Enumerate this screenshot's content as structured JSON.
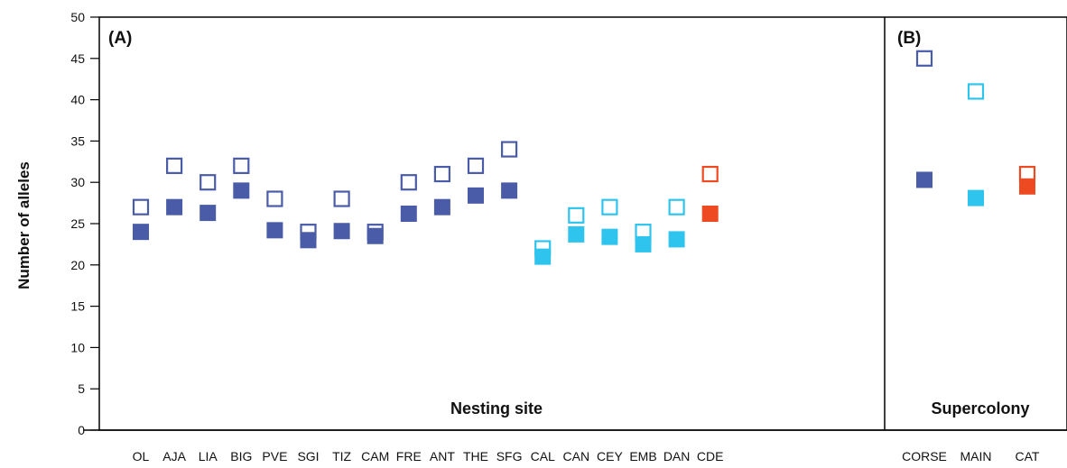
{
  "chart_data": {
    "type": "scatter",
    "ylabel": "Number of alleles",
    "xlabel": "",
    "ylim": [
      0,
      50
    ],
    "yticks": [
      0,
      5,
      10,
      15,
      20,
      25,
      30,
      35,
      40,
      45,
      50
    ],
    "panels": [
      {
        "label": "(A)",
        "section_label": "Nesting site"
      },
      {
        "label": "(B)",
        "section_label": "Supercolony"
      }
    ],
    "legend": "none",
    "grid": false,
    "marker_styles": {
      "open_square": "hollow",
      "filled_square": "solid"
    },
    "colors": {
      "corse_group": "#4a5ba8",
      "main_group": "#2ec4ee",
      "cat_group": "#ee4a22"
    },
    "categories": [
      "OL",
      "AJA",
      "LIA",
      "BIG",
      "PVE",
      "SGI",
      "TIZ",
      "CAM",
      "FRE",
      "ANT",
      "THE",
      "SFG",
      "CAL",
      "CAN",
      "CEY",
      "EMB",
      "DAN",
      "CDE",
      "CORSE",
      "MAIN",
      "CAT"
    ],
    "category_panel": [
      0,
      0,
      0,
      0,
      0,
      0,
      0,
      0,
      0,
      0,
      0,
      0,
      0,
      0,
      0,
      0,
      0,
      0,
      1,
      1,
      1
    ],
    "category_color": [
      "corse_group",
      "corse_group",
      "corse_group",
      "corse_group",
      "corse_group",
      "corse_group",
      "corse_group",
      "corse_group",
      "corse_group",
      "corse_group",
      "corse_group",
      "corse_group",
      "main_group",
      "main_group",
      "main_group",
      "main_group",
      "main_group",
      "cat_group",
      "corse_group",
      "main_group",
      "cat_group"
    ],
    "series": [
      {
        "marker": "open_square",
        "values": [
          27,
          32,
          30,
          32,
          28,
          24,
          28,
          24,
          30,
          31,
          32,
          34,
          22,
          26,
          27,
          24,
          27,
          31,
          45,
          41,
          31
        ]
      },
      {
        "marker": "filled_square",
        "values": [
          24,
          27,
          26.3,
          29,
          24.2,
          23,
          24.1,
          23.5,
          26.2,
          27,
          28.4,
          29,
          21,
          23.7,
          23.4,
          22.5,
          23.1,
          26.2,
          30.3,
          28.1,
          29.5
        ]
      }
    ]
  }
}
